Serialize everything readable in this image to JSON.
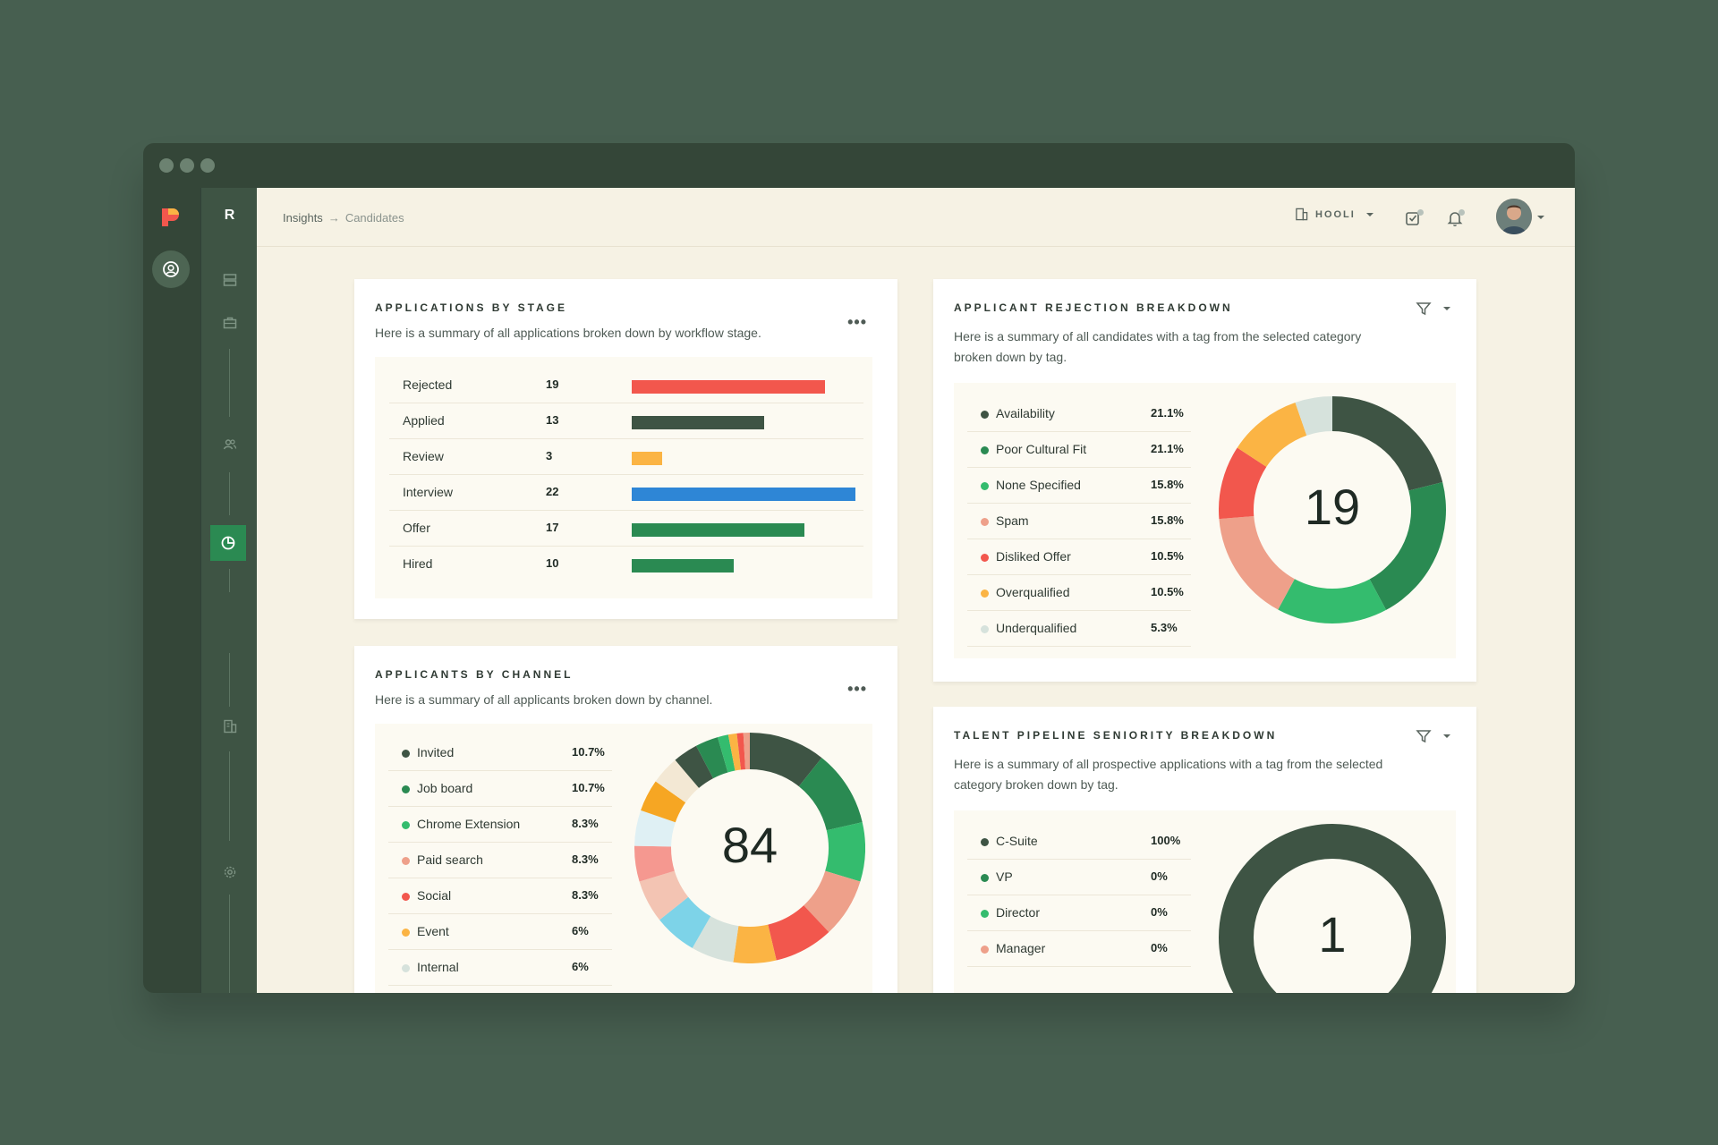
{
  "app": {
    "rail_letter": "R",
    "colors": {
      "dark_green": "#3e5444",
      "accent_green": "#2b8a52",
      "cream": "#f6f2e4"
    }
  },
  "breadcrumb": {
    "root": "Insights",
    "separator": "→",
    "current": "Candidates"
  },
  "topbar": {
    "org_name": "HOOLI"
  },
  "applications_by_stage": {
    "title": "APPLICATIONS BY STAGE",
    "subtitle": "Here is a summary of all applications broken down by workflow stage.",
    "more": "•••",
    "rows": [
      {
        "label": "Rejected",
        "value": 19,
        "color": "#f2574d"
      },
      {
        "label": "Applied",
        "value": 13,
        "color": "#3e5444"
      },
      {
        "label": "Review",
        "value": 3,
        "color": "#fbb444"
      },
      {
        "label": "Interview",
        "value": 22,
        "color": "#2e86d6"
      },
      {
        "label": "Offer",
        "value": 17,
        "color": "#2a8a52"
      },
      {
        "label": "Hired",
        "value": 10,
        "color": "#2a8a52"
      }
    ],
    "max": 22
  },
  "applicants_by_channel": {
    "title": "APPLICANTS BY CHANNEL",
    "subtitle": "Here is a summary of all applicants broken down by channel.",
    "more": "•••",
    "total": "84",
    "legend": [
      {
        "label": "Invited",
        "value": "10.7%",
        "color": "#3e5444"
      },
      {
        "label": "Job board",
        "value": "10.7%",
        "color": "#2a8a52"
      },
      {
        "label": "Chrome Extension",
        "value": "8.3%",
        "color": "#34bc6e"
      },
      {
        "label": "Paid search",
        "value": "8.3%",
        "color": "#eea08a"
      },
      {
        "label": "Social",
        "value": "8.3%",
        "color": "#f2574d"
      },
      {
        "label": "Event",
        "value": "6%",
        "color": "#fbb444"
      },
      {
        "label": "Internal",
        "value": "6%",
        "color": "#d6e2dc"
      }
    ],
    "segments": [
      {
        "value": 10.7,
        "color": "#3e5444"
      },
      {
        "value": 10.7,
        "color": "#2a8a52"
      },
      {
        "value": 8.3,
        "color": "#34bc6e"
      },
      {
        "value": 8.3,
        "color": "#eea08a"
      },
      {
        "value": 8.3,
        "color": "#f2574d"
      },
      {
        "value": 6,
        "color": "#fbb444"
      },
      {
        "value": 6,
        "color": "#d6e2dc"
      },
      {
        "value": 6,
        "color": "#7dd3e8"
      },
      {
        "value": 6,
        "color": "#f3c4b3"
      },
      {
        "value": 5,
        "color": "#f59890"
      },
      {
        "value": 5,
        "color": "#dff0f4"
      },
      {
        "value": 4.5,
        "color": "#f6a623"
      },
      {
        "value": 4,
        "color": "#f3e8d4"
      },
      {
        "value": 3.5,
        "color": "#3e5444"
      },
      {
        "value": 3.2,
        "color": "#2a8a52"
      },
      {
        "value": 1.5,
        "color": "#34bc6e"
      },
      {
        "value": 1.2,
        "color": "#fbb444"
      },
      {
        "value": 0.9,
        "color": "#f2574d"
      },
      {
        "value": 0.9,
        "color": "#eea08a"
      }
    ]
  },
  "applicant_rejection": {
    "title": "APPLICANT REJECTION BREAKDOWN",
    "subtitle_line1": "Here is a summary of all candidates with a tag from the selected category",
    "subtitle_line2": "broken down by tag.",
    "total": "19",
    "legend": [
      {
        "label": "Availability",
        "value": "21.1%",
        "color": "#3e5444"
      },
      {
        "label": "Poor Cultural Fit",
        "value": "21.1%",
        "color": "#2a8a52"
      },
      {
        "label": "None Specified",
        "value": "15.8%",
        "color": "#34bc6e"
      },
      {
        "label": "Spam",
        "value": "15.8%",
        "color": "#eea08a"
      },
      {
        "label": "Disliked Offer",
        "value": "10.5%",
        "color": "#f2574d"
      },
      {
        "label": "Overqualified",
        "value": "10.5%",
        "color": "#fbb444"
      },
      {
        "label": "Underqualified",
        "value": "5.3%",
        "color": "#d6e2dc"
      }
    ]
  },
  "talent_pipeline": {
    "title": "TALENT PIPELINE SENIORITY BREAKDOWN",
    "subtitle_line1": "Here is a summary of all prospective applications with a tag from the selected",
    "subtitle_line2": "category broken down by tag.",
    "total": "1",
    "legend": [
      {
        "label": "C-Suite",
        "value": "100%",
        "color": "#3e5444"
      },
      {
        "label": "VP",
        "value": "0%",
        "color": "#2a8a52"
      },
      {
        "label": "Director",
        "value": "0%",
        "color": "#34bc6e"
      },
      {
        "label": "Manager",
        "value": "0%",
        "color": "#eea08a"
      }
    ]
  }
}
